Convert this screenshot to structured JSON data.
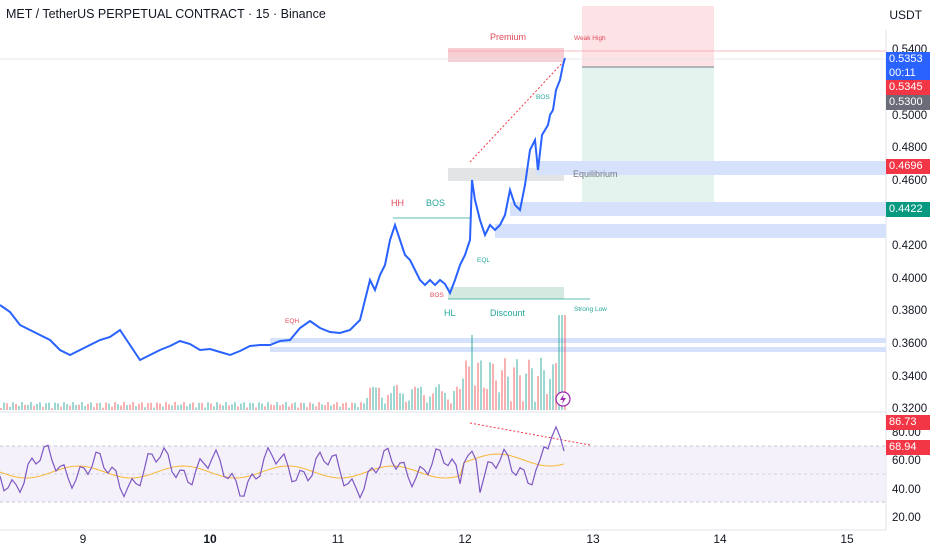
{
  "header": {
    "symbol_title": "MET / TetherUS PERPETUAL CONTRACT · 15 · Binance",
    "currency": "USDT"
  },
  "price_axis": {
    "ticks": [
      "0.5400",
      "0.5000",
      "0.4800",
      "0.4600",
      "0.4200",
      "0.4000",
      "0.3800",
      "0.3600",
      "0.3400",
      "0.3200"
    ],
    "badges": {
      "last_price": "0.5353",
      "countdown": "00:11",
      "red_level": "0.5345",
      "grey_level": "0.5300",
      "resistance_level": "0.4696",
      "support_level": "0.4422"
    }
  },
  "rsi_axis": {
    "ticks": [
      "80.00",
      "60.00",
      "40.00",
      "20.00"
    ],
    "badges": {
      "rsi_value": "86.73",
      "rsi_ma": "68.94"
    }
  },
  "time_axis": {
    "labels": [
      "9",
      "10",
      "11",
      "12",
      "13",
      "14",
      "15"
    ]
  },
  "annotations": {
    "premium": "Premium",
    "weak_high": "Weak High",
    "bos_top": "BOS",
    "equilibrium": "Equilibrium",
    "hh": "HH",
    "bos_mid": "BOS",
    "eql": "EQL",
    "bos_low": "BOS",
    "hl": "HL",
    "discount": "Discount",
    "strong_low": "Strong Low",
    "eqh": "EQH"
  },
  "colors": {
    "price_line": "#2962ff",
    "up_candle": "#26a69a",
    "down_candle": "#ef5350",
    "rsi_line": "#7e57c2",
    "rsi_ma": "#f7b733",
    "premium_zone": "#f4c2c8",
    "discount_zone": "#cfe8de",
    "order_block": "#d6e2fb"
  }
}
